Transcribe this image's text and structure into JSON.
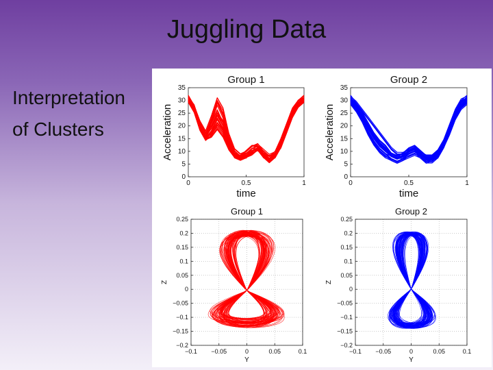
{
  "slide": {
    "title": "Juggling Data",
    "side_lines": [
      "Interpretation",
      "of Clusters"
    ]
  },
  "chart_data": [
    {
      "type": "line",
      "title": "Group 1",
      "xlabel": "time",
      "ylabel": "Acceleration",
      "xlim": [
        0,
        1
      ],
      "ylim": [
        0,
        35
      ],
      "xticks": [
        0,
        0.5,
        1
      ],
      "xtick_labels": [
        "0",
        "0.5",
        "1"
      ],
      "yticks": [
        0,
        5,
        10,
        15,
        20,
        25,
        30,
        35
      ],
      "ytick_labels": [
        "0",
        "5",
        "10",
        "15",
        "20",
        "25",
        "30",
        "35"
      ],
      "grid": false,
      "color": "#ff0000",
      "x": [
        0,
        0.05,
        0.1,
        0.15,
        0.2,
        0.25,
        0.3,
        0.35,
        0.4,
        0.45,
        0.5,
        0.55,
        0.6,
        0.65,
        0.7,
        0.75,
        0.8,
        0.85,
        0.9,
        0.95,
        1
      ],
      "series": [
        {
          "values": [
            31,
            27,
            20,
            16,
            19,
            24,
            20,
            13,
            9,
            8,
            9,
            11,
            12,
            9,
            7,
            9,
            13,
            19,
            25,
            29,
            31
          ]
        },
        {
          "values": [
            31,
            27,
            20,
            15,
            18,
            23,
            19,
            12,
            8,
            7,
            8,
            10,
            11,
            8,
            7,
            8,
            12,
            18,
            24,
            28,
            31
          ]
        },
        {
          "values": [
            31,
            27,
            20,
            16,
            22,
            29,
            24,
            15,
            10,
            8,
            9,
            11,
            12,
            10,
            8,
            9,
            13,
            20,
            26,
            29,
            31
          ]
        },
        {
          "values": [
            30,
            26,
            19,
            15,
            16,
            19,
            16,
            11,
            8,
            7,
            8,
            9,
            11,
            8,
            6,
            8,
            12,
            18,
            24,
            28,
            30
          ]
        },
        {
          "values": [
            31,
            28,
            21,
            17,
            21,
            26,
            21,
            14,
            9,
            8,
            10,
            12,
            12,
            9,
            7,
            9,
            14,
            20,
            25,
            29,
            31
          ]
        },
        {
          "values": [
            30,
            26,
            19,
            15,
            17,
            21,
            18,
            12,
            9,
            8,
            9,
            10,
            11,
            9,
            8,
            9,
            12,
            18,
            24,
            28,
            30
          ]
        },
        {
          "values": [
            31,
            27,
            20,
            16,
            20,
            25,
            22,
            14,
            10,
            8,
            8,
            11,
            12,
            10,
            8,
            9,
            13,
            19,
            26,
            30,
            31
          ]
        },
        {
          "values": [
            31,
            27,
            21,
            17,
            23,
            30,
            26,
            16,
            10,
            8,
            9,
            11,
            12,
            9,
            7,
            9,
            14,
            20,
            26,
            29,
            31
          ]
        }
      ]
    },
    {
      "type": "line",
      "title": "Group 2",
      "xlabel": "time",
      "ylabel": "Acceleration",
      "xlim": [
        0,
        1
      ],
      "ylim": [
        0,
        35
      ],
      "xticks": [
        0,
        0.5,
        1
      ],
      "xtick_labels": [
        "0",
        "0.5",
        "1"
      ],
      "yticks": [
        0,
        5,
        10,
        15,
        20,
        25,
        30,
        35
      ],
      "ytick_labels": [
        "0",
        "5",
        "10",
        "15",
        "20",
        "25",
        "30",
        "35"
      ],
      "grid": false,
      "color": "#0000ff",
      "x": [
        0,
        0.05,
        0.1,
        0.15,
        0.2,
        0.25,
        0.3,
        0.35,
        0.4,
        0.45,
        0.5,
        0.55,
        0.6,
        0.65,
        0.7,
        0.75,
        0.8,
        0.85,
        0.9,
        0.95,
        1
      ],
      "series": [
        {
          "values": [
            31,
            28,
            24,
            19,
            15,
            12,
            10,
            8,
            7,
            8,
            10,
            11,
            9,
            7,
            7,
            9,
            13,
            19,
            25,
            29,
            31
          ]
        },
        {
          "values": [
            30,
            27,
            23,
            18,
            14,
            11,
            9,
            7,
            6,
            7,
            9,
            10,
            8,
            6,
            7,
            8,
            12,
            18,
            24,
            28,
            30
          ]
        },
        {
          "values": [
            31,
            28,
            25,
            21,
            17,
            14,
            12,
            9,
            8,
            9,
            11,
            12,
            10,
            8,
            8,
            10,
            14,
            20,
            26,
            29,
            31
          ]
        },
        {
          "values": [
            29,
            26,
            22,
            17,
            13,
            10,
            8,
            7,
            6,
            7,
            8,
            9,
            8,
            6,
            6,
            8,
            12,
            17,
            23,
            27,
            29
          ]
        },
        {
          "values": [
            30,
            27,
            24,
            20,
            16,
            13,
            11,
            9,
            8,
            8,
            10,
            11,
            9,
            7,
            7,
            9,
            13,
            19,
            25,
            28,
            30
          ]
        },
        {
          "values": [
            31,
            29,
            26,
            23,
            20,
            17,
            14,
            11,
            9,
            9,
            10,
            11,
            9,
            8,
            8,
            10,
            14,
            20,
            26,
            30,
            31
          ]
        }
      ]
    },
    {
      "type": "line",
      "title": "Group 1",
      "xlabel": "Y",
      "ylabel": "Z",
      "xlim": [
        -0.1,
        0.1
      ],
      "ylim": [
        -0.2,
        0.25
      ],
      "xticks": [
        -0.1,
        -0.05,
        0,
        0.05,
        0.1
      ],
      "xtick_labels": [
        "−0.1",
        "−0.05",
        "0",
        "0.05",
        "0.1"
      ],
      "yticks": [
        -0.2,
        -0.15,
        -0.1,
        -0.05,
        0,
        0.05,
        0.1,
        0.15,
        0.2,
        0.25
      ],
      "ytick_labels": [
        "−0.2",
        "−0.15",
        "−0.1",
        "−0.05",
        "0",
        "0.05",
        "0.1",
        "0.15",
        "0.2",
        "0.25"
      ],
      "grid": true,
      "color": "#ff0000",
      "figure_eight": {
        "center_y": -0.005,
        "upper_lobe_top": 0.2,
        "lower_lobe_bottom": -0.12,
        "half_width": 0.055,
        "variance": "wide"
      }
    },
    {
      "type": "line",
      "title": "Group 2",
      "xlabel": "Y",
      "ylabel": "Z",
      "xlim": [
        -0.1,
        0.1
      ],
      "ylim": [
        -0.2,
        0.25
      ],
      "xticks": [
        -0.1,
        -0.05,
        0,
        0.05,
        0.1
      ],
      "xtick_labels": [
        "−0.1",
        "−0.05",
        "0",
        "0.05",
        "0.1"
      ],
      "yticks": [
        -0.2,
        -0.15,
        -0.1,
        -0.05,
        0,
        0.05,
        0.1,
        0.15,
        0.2,
        0.25
      ],
      "ytick_labels": [
        "−0.2",
        "−0.15",
        "−0.1",
        "−0.05",
        "0",
        "0.05",
        "0.1",
        "0.15",
        "0.2",
        "0.25"
      ],
      "grid": true,
      "color": "#0000ff",
      "figure_eight": {
        "center_y": 0.0,
        "upper_lobe_top": 0.2,
        "lower_lobe_bottom": -0.13,
        "half_width": 0.035,
        "variance": "narrow"
      }
    }
  ]
}
